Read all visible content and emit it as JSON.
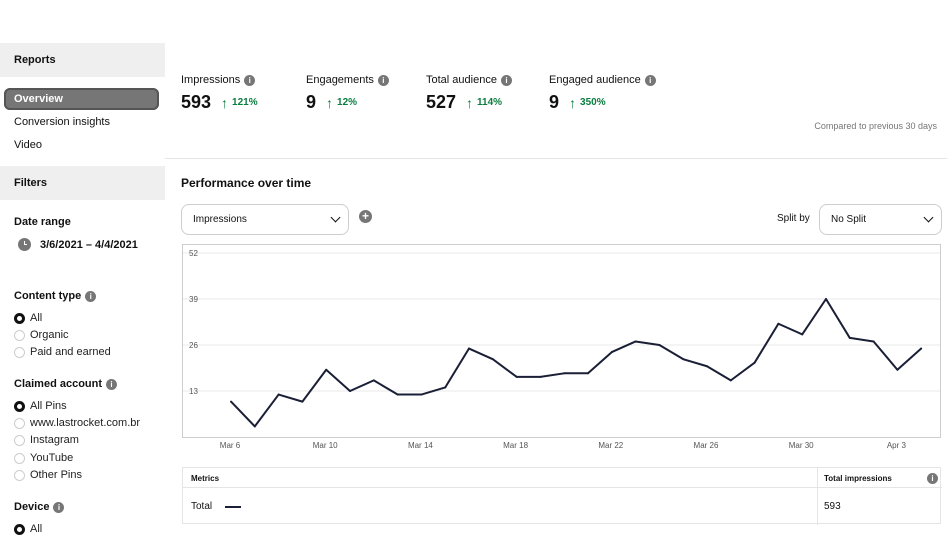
{
  "sidebar": {
    "reports_header": "Reports",
    "nav": [
      "Overview",
      "Conversion insights",
      "Video"
    ],
    "filters_header": "Filters",
    "date_range_label": "Date range",
    "date_range_value": "3/6/2021 – 4/4/2021",
    "content_type": {
      "label": "Content type",
      "options": [
        "All",
        "Organic",
        "Paid and earned"
      ],
      "selected": "All"
    },
    "claimed_account": {
      "label": "Claimed account",
      "options": [
        "All Pins",
        "www.lastrocket.com.br",
        "Instagram",
        "YouTube",
        "Other Pins"
      ],
      "selected": "All Pins"
    },
    "device": {
      "label": "Device",
      "options": [
        "All"
      ],
      "selected": "All"
    }
  },
  "metrics": [
    {
      "label": "Impressions",
      "value": "593",
      "change": "121%"
    },
    {
      "label": "Engagements",
      "value": "9",
      "change": "12%"
    },
    {
      "label": "Total audience",
      "value": "527",
      "change": "114%"
    },
    {
      "label": "Engaged audience",
      "value": "9",
      "change": "350%"
    }
  ],
  "compare_note": "Compared to previous 30 days",
  "performance": {
    "title": "Performance over time",
    "metric_select": "Impressions",
    "split_by_label": "Split by",
    "split_select": "No Split"
  },
  "table": {
    "col_metrics": "Metrics",
    "col_total": "Total impressions",
    "row_label": "Total",
    "row_value": "593"
  },
  "colors": {
    "line": "#1a1f36",
    "positive": "#0a7d3e",
    "sidebar_section": "#efefef"
  },
  "chart_data": {
    "type": "line",
    "title": "Performance over time",
    "ylim": [
      0,
      52
    ],
    "yticks": [
      13,
      26,
      39,
      52
    ],
    "xtick_labels": [
      "Mar 6",
      "Mar 10",
      "Mar 14",
      "Mar 18",
      "Mar 22",
      "Mar 26",
      "Mar 30",
      "Apr 3"
    ],
    "grid": true,
    "series": [
      {
        "name": "Total",
        "x": [
          "Mar 6",
          "Mar 7",
          "Mar 8",
          "Mar 9",
          "Mar 10",
          "Mar 11",
          "Mar 12",
          "Mar 13",
          "Mar 14",
          "Mar 15",
          "Mar 16",
          "Mar 17",
          "Mar 18",
          "Mar 19",
          "Mar 20",
          "Mar 21",
          "Mar 22",
          "Mar 23",
          "Mar 24",
          "Mar 25",
          "Mar 26",
          "Mar 27",
          "Mar 28",
          "Mar 29",
          "Mar 30",
          "Mar 31",
          "Apr 1",
          "Apr 2",
          "Apr 3",
          "Apr 4"
        ],
        "values": [
          10,
          3,
          12,
          10,
          19,
          13,
          16,
          12,
          12,
          14,
          25,
          22,
          17,
          17,
          18,
          18,
          24,
          27,
          26,
          22,
          20,
          16,
          21,
          32,
          29,
          39,
          28,
          27,
          19,
          25
        ]
      }
    ]
  }
}
